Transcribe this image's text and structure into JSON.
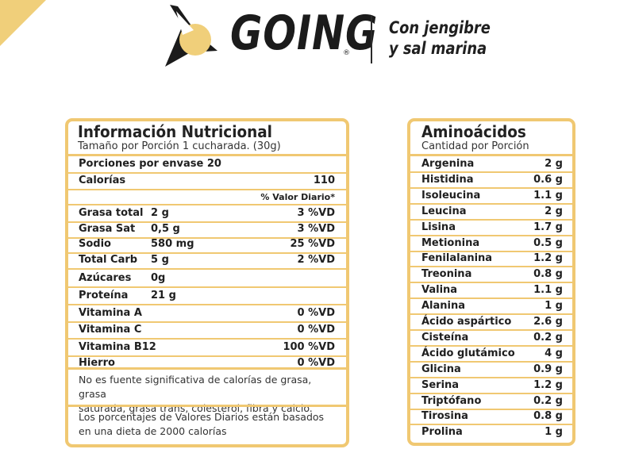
{
  "brand": {
    "name": "GOING",
    "registered": "®",
    "tagline_line1": "Con jengibre",
    "tagline_line2": "y sal marina",
    "accent_color": "#f0c872"
  },
  "nutrition": {
    "title": "Información Nutricional",
    "serving_size": "Tamaño por Porción 1 cucharada. (30g)",
    "servings": "Porciones por envase  20",
    "calories_label": "Calorías",
    "calories_value": "110",
    "dv_header": "% Valor Diario*",
    "rows": [
      {
        "label": "Grasa total",
        "amount": "2 g",
        "dv": "3 %VD"
      },
      {
        "label": "Grasa Sat",
        "amount": "0,5 g",
        "dv": "3 %VD"
      },
      {
        "label": "Sodio",
        "amount": "580 mg",
        "dv": "25 %VD"
      },
      {
        "label": "Total Carb",
        "amount": "5 g",
        "dv": "2 %VD"
      },
      {
        "label": "Azúcares",
        "amount": "0g",
        "dv": ""
      },
      {
        "label": "Proteína",
        "amount": "21 g",
        "dv": ""
      },
      {
        "label": "Vitamina A",
        "amount": "",
        "dv": "0 %VD"
      },
      {
        "label": "Vitamina C",
        "amount": "",
        "dv": "0 %VD"
      },
      {
        "label": "Vitamina B12",
        "amount": "",
        "dv": "100 %VD"
      },
      {
        "label": "Hierro",
        "amount": "",
        "dv": "0 %VD"
      }
    ],
    "note1_line1": "No es fuente significativa de calorías de grasa, grasa",
    "note1_line2": "saturada, grasa trans, colesterol, fibra y calcio.",
    "note2_line1": "Los porcentajes de Valores Diarios están basados",
    "note2_line2": "en una dieta de 2000 calorías"
  },
  "amino": {
    "title": "Aminoácidos",
    "subtitle": "Cantidad por Porción",
    "rows": [
      {
        "name": "Argenina",
        "value": "2 g"
      },
      {
        "name": "Histidina",
        "value": "0.6 g"
      },
      {
        "name": "Isoleucina",
        "value": "1.1 g"
      },
      {
        "name": "Leucina",
        "value": "2 g"
      },
      {
        "name": "Lisina",
        "value": "1.7 g"
      },
      {
        "name": "Metionina",
        "value": "0.5 g"
      },
      {
        "name": "Fenilalanina",
        "value": "1.2 g"
      },
      {
        "name": "Treonina",
        "value": "0.8 g"
      },
      {
        "name": "Valina",
        "value": "1.1 g"
      },
      {
        "name": "Alanina",
        "value": "1 g"
      },
      {
        "name": "Ácido aspártico",
        "value": "2.6 g"
      },
      {
        "name": "Cisteína",
        "value": "0.2 g"
      },
      {
        "name": "Ácido glutámico",
        "value": "4 g"
      },
      {
        "name": "Glicina",
        "value": "0.9 g"
      },
      {
        "name": "Serina",
        "value": "1.2 g"
      },
      {
        "name": "Triptófano",
        "value": "0.2 g"
      },
      {
        "name": "Tirosina",
        "value": "0.8 g"
      },
      {
        "name": "Prolina",
        "value": "1 g"
      }
    ]
  }
}
